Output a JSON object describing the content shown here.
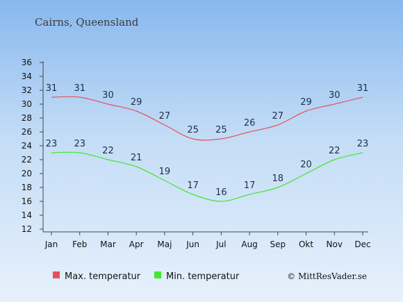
{
  "chart_data": {
    "type": "line",
    "title": "Cairns, Queensland",
    "categories": [
      "Jan",
      "Feb",
      "Mar",
      "Apr",
      "Maj",
      "Jun",
      "Jul",
      "Aug",
      "Sep",
      "Okt",
      "Nov",
      "Dec"
    ],
    "series": [
      {
        "name": "Max. temperatur",
        "color": "#e8505b",
        "values": [
          31,
          31,
          30,
          29,
          27,
          25,
          25,
          26,
          27,
          29,
          30,
          31
        ]
      },
      {
        "name": "Min. temperatur",
        "color": "#44e62e",
        "values": [
          23,
          23,
          22,
          21,
          19,
          17,
          16,
          17,
          18,
          20,
          22,
          23
        ]
      }
    ],
    "ylim": [
      12,
      36
    ],
    "yticks": [
      12,
      14,
      16,
      18,
      20,
      22,
      24,
      26,
      28,
      30,
      32,
      34,
      36
    ],
    "grid": false,
    "legend_position": "bottom-left"
  },
  "credit": "© MittResVader.se"
}
